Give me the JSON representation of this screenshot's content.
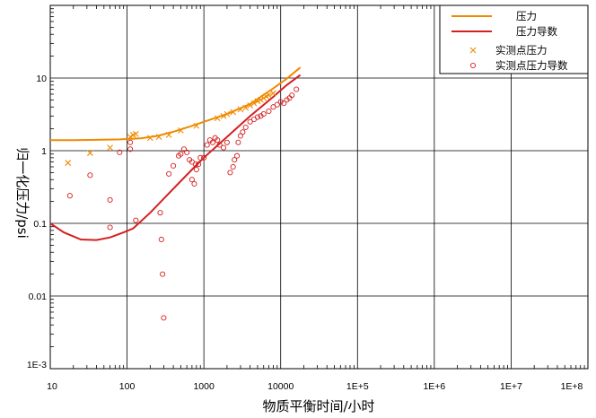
{
  "chart_data": {
    "type": "scatter",
    "xlabel": "物质平衡时间/小时",
    "ylabel": "归一化压力/psi",
    "xscale": "log",
    "yscale": "log",
    "xlim": [
      10,
      100000000
    ],
    "ylim": [
      0.001,
      100
    ],
    "x_tick_labels": [
      "10",
      "100",
      "1000",
      "10000",
      "1E+5",
      "1E+6",
      "1E+7",
      "1E+8"
    ],
    "y_tick_labels": [
      "1E-3",
      "0.01",
      "0.1",
      "1",
      "10"
    ],
    "grid": true,
    "legend_position": "top-right",
    "colors": {
      "pressure": "#f08a00",
      "derivative": "#d42020"
    },
    "series": [
      {
        "name": "压力",
        "kind": "line",
        "x": [
          10,
          20,
          40,
          80,
          150,
          250,
          400,
          700,
          1000,
          2000,
          4000,
          8000,
          12000,
          18000
        ],
        "y": [
          1.4,
          1.4,
          1.41,
          1.43,
          1.48,
          1.6,
          1.82,
          2.2,
          2.5,
          3.2,
          4.4,
          7.2,
          9.8,
          14
        ]
      },
      {
        "name": "压力导数",
        "kind": "line",
        "x": [
          10,
          15,
          25,
          40,
          60,
          90,
          120,
          200,
          400,
          700,
          1000,
          2000,
          4000,
          8000,
          12000,
          18000
        ],
        "y": [
          0.1,
          0.075,
          0.06,
          0.059,
          0.064,
          0.075,
          0.085,
          0.14,
          0.3,
          0.55,
          0.8,
          1.55,
          3.0,
          5.5,
          8.0,
          11
        ]
      },
      {
        "name": "实测点压力",
        "kind": "marker",
        "marker": "x",
        "x": [
          17,
          33,
          60,
          110,
          120,
          130,
          200,
          260,
          350,
          500,
          800,
          1500,
          1800,
          2000,
          2400,
          3000,
          3500,
          4000,
          4500,
          5000,
          5500,
          6000,
          6500,
          7000,
          8000
        ],
        "y": [
          0.68,
          0.93,
          1.1,
          1.55,
          1.65,
          1.7,
          1.5,
          1.55,
          1.65,
          1.9,
          2.2,
          2.8,
          3.0,
          3.2,
          3.4,
          3.7,
          3.9,
          4.2,
          4.5,
          4.8,
          5.0,
          5.3,
          5.6,
          5.8,
          6.2
        ]
      },
      {
        "name": "实测点压力导数",
        "kind": "marker",
        "marker": "o",
        "x": [
          18,
          33,
          60,
          60,
          80,
          110,
          110,
          130,
          270,
          280,
          290,
          300,
          350,
          400,
          470,
          500,
          550,
          600,
          650,
          700,
          700,
          750,
          780,
          800,
          850,
          900,
          1000,
          1100,
          1200,
          1300,
          1400,
          1500,
          1600,
          1800,
          2000,
          2200,
          2400,
          2500,
          2700,
          2800,
          3000,
          3200,
          3500,
          4000,
          4500,
          5000,
          5500,
          6000,
          7000,
          8000,
          9000,
          10000,
          11000,
          12000,
          13000,
          14000,
          16000
        ],
        "y": [
          0.24,
          0.46,
          0.21,
          0.088,
          0.95,
          1.05,
          1.3,
          0.11,
          0.14,
          0.06,
          0.02,
          0.005,
          0.48,
          0.62,
          0.85,
          0.9,
          1.05,
          0.95,
          0.75,
          0.7,
          0.4,
          0.35,
          0.65,
          0.55,
          0.65,
          0.8,
          0.8,
          1.2,
          1.4,
          1.3,
          1.5,
          1.4,
          1.2,
          1.1,
          1.3,
          0.5,
          0.6,
          0.75,
          0.85,
          1.3,
          1.6,
          1.8,
          2.1,
          2.5,
          2.7,
          2.9,
          3.0,
          3.2,
          3.5,
          4.0,
          4.3,
          4.7,
          4.5,
          5.0,
          5.3,
          5.8,
          7.0
        ]
      }
    ]
  }
}
